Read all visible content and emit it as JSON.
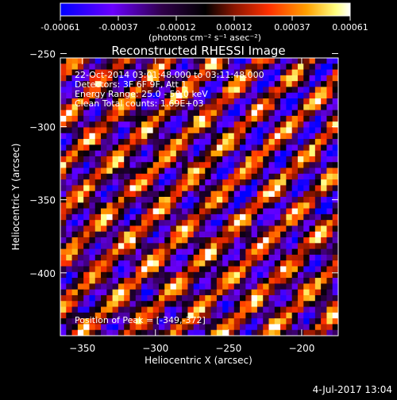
{
  "colorbar": {
    "tick_labels": [
      "-0.00061",
      "-0.00037",
      "-0.00012",
      "0.00012",
      "0.00037",
      "0.00061"
    ],
    "unit_label": "(photons cm⁻² s⁻¹ asec⁻²)",
    "colors": [
      "#0000ff",
      "#7a00ff",
      "#2a0040",
      "#000000",
      "#8a1a00",
      "#ff3000",
      "#ffa000",
      "#ffff80",
      "#ffffff"
    ]
  },
  "chart_data": {
    "type": "heatmap",
    "title": "Reconstructed RHESSI Image",
    "xlabel": "Heliocentric X (arcsec)",
    "ylabel": "Heliocentric Y (arcsec)",
    "xlim": [
      -365,
      -175
    ],
    "ylim": [
      -443,
      -253
    ],
    "x_ticks": [
      -350,
      -300,
      -250,
      -200
    ],
    "y_ticks": [
      -250,
      -300,
      -350,
      -400
    ],
    "value_range": [
      -0.00061,
      0.00061
    ],
    "info_lines": [
      "22-Oct-2014 03:01:48.000 to 03:11:48.000",
      "Detectors: 3F 6F 9F, Att 1",
      "Energy Range: 25.0 - 50.0 keV",
      "Clean    Total counts: 1.69E+03"
    ],
    "peak_text": "Position of Peak = [-349,-372]",
    "peak_position": [
      -349,
      -372
    ]
  },
  "timestamp": "4-Jul-2017 13:04"
}
